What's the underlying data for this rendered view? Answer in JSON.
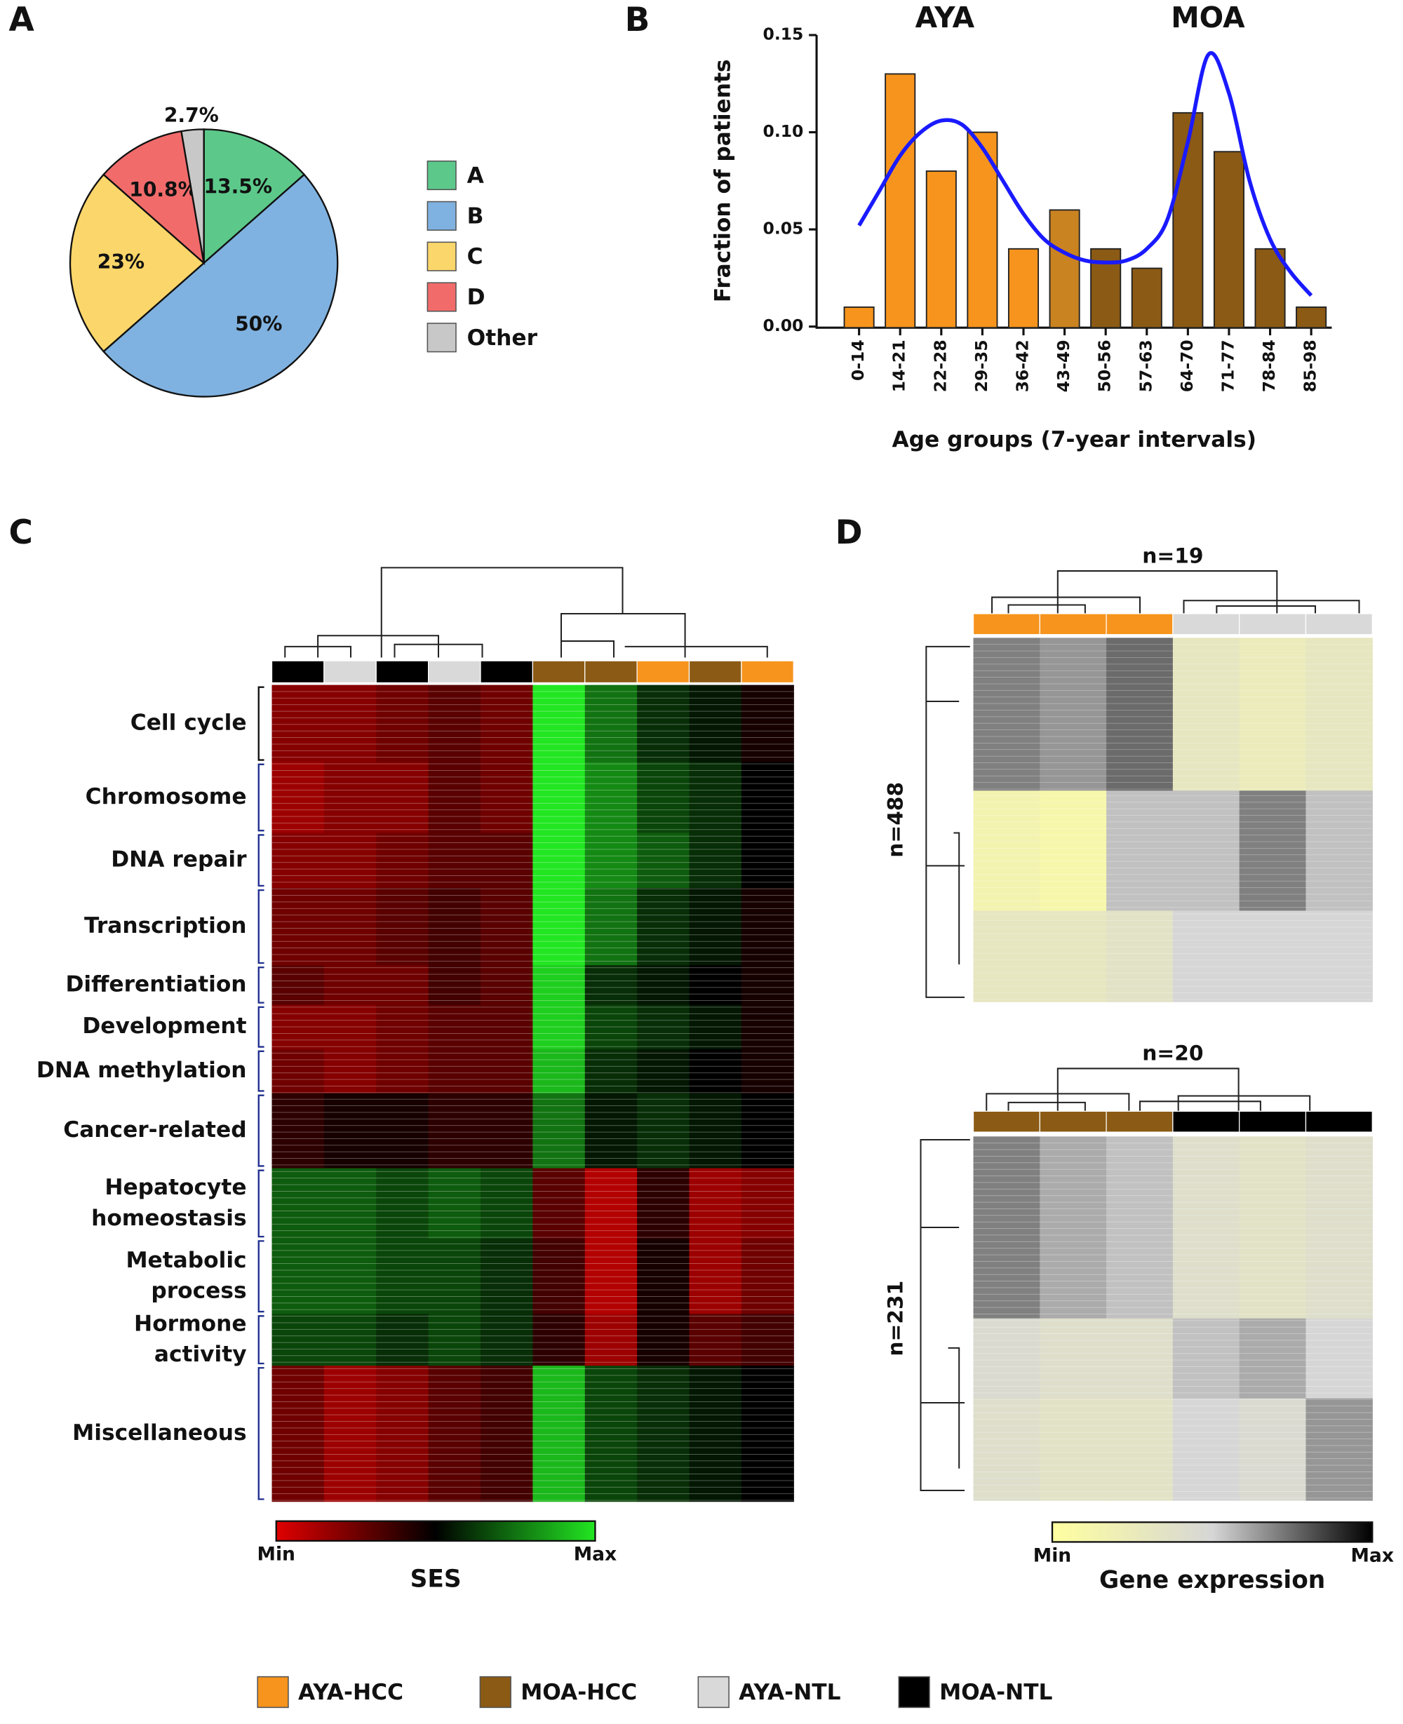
{
  "chart_data": [
    {
      "type": "pie",
      "panel_label": "A",
      "categories": [
        "A",
        "B",
        "C",
        "D",
        "Other"
      ],
      "values": [
        13.5,
        50,
        23,
        10.8,
        2.7
      ],
      "value_labels": [
        "13.5%",
        "50%",
        "23%",
        "10.8%",
        "2.7%"
      ],
      "colors": [
        "#5cc98a",
        "#7fb2e0",
        "#fbd66a",
        "#f26b6b",
        "#c8c8c8"
      ]
    },
    {
      "type": "bar",
      "panel_label": "B",
      "annotations": [
        "AYA",
        "MOA"
      ],
      "ylabel": "Fraction of patients",
      "xlabel": "Age groups (7-year intervals)",
      "categories": [
        "0-14",
        "14-21",
        "22-28",
        "29-35",
        "36-42",
        "43-49",
        "50-56",
        "57-63",
        "64-70",
        "71-77",
        "78-84",
        "85-98"
      ],
      "values": [
        0.01,
        0.13,
        0.08,
        0.1,
        0.04,
        0.06,
        0.04,
        0.03,
        0.11,
        0.09,
        0.04,
        0.01
      ],
      "colors": [
        "#f7941d",
        "#f7941d",
        "#f7941d",
        "#f7941d",
        "#f7941d",
        "#c98321",
        "#8b5a14",
        "#8b5a14",
        "#8b5a14",
        "#8b5a14",
        "#8b5a14",
        "#8b5a14"
      ],
      "ylim": [
        0,
        0.15
      ],
      "yticks": [
        {
          "value": 0,
          "label": "0.00"
        },
        0.05,
        {
          "value": 0.1,
          "label": "0.10"
        },
        0.15
      ],
      "curve": {
        "color": "#1a1aff",
        "x": [
          0,
          0.5,
          1,
          1.5,
          2,
          2.5,
          3,
          3.5,
          4,
          4.5,
          5,
          5.5,
          6,
          6.5,
          7,
          7.5,
          8,
          8.5,
          9,
          9.5,
          10,
          10.5,
          11
        ],
        "values": [
          0.052,
          0.07,
          0.088,
          0.1,
          0.106,
          0.104,
          0.092,
          0.075,
          0.058,
          0.045,
          0.038,
          0.034,
          0.033,
          0.034,
          0.04,
          0.055,
          0.095,
          0.14,
          0.12,
          0.075,
          0.045,
          0.028,
          0.016
        ]
      }
    },
    {
      "type": "heatmap",
      "panel_label": "C",
      "row_labels": [
        [
          "Cell cycle"
        ],
        [
          "Chromosome"
        ],
        [
          "DNA repair"
        ],
        [
          "Transcription"
        ],
        [
          "Differentiation"
        ],
        [
          "Development"
        ],
        [
          "DNA methylation"
        ],
        [
          "Cancer-related"
        ],
        [
          "Hepatocyte",
          "homeostasis"
        ],
        [
          "Metabolic",
          "process"
        ],
        [
          "Hormone",
          "activity"
        ],
        [
          "Miscellaneous"
        ]
      ],
      "column_types": [
        3,
        2,
        3,
        2,
        3,
        1,
        1,
        0,
        1,
        0
      ],
      "values": [
        [
          0.2,
          0.2,
          0.25,
          0.3,
          0.25,
          1,
          0.75,
          0.6,
          0.55,
          0.45
        ],
        [
          0.15,
          0.2,
          0.2,
          0.3,
          0.25,
          1,
          0.8,
          0.65,
          0.6,
          0.5
        ],
        [
          0.2,
          0.2,
          0.25,
          0.3,
          0.3,
          1,
          0.8,
          0.7,
          0.6,
          0.5
        ],
        [
          0.25,
          0.25,
          0.3,
          0.35,
          0.3,
          1,
          0.75,
          0.6,
          0.55,
          0.45
        ],
        [
          0.3,
          0.25,
          0.25,
          0.35,
          0.3,
          0.95,
          0.6,
          0.55,
          0.5,
          0.45
        ],
        [
          0.2,
          0.2,
          0.25,
          0.3,
          0.3,
          0.95,
          0.65,
          0.6,
          0.55,
          0.45
        ],
        [
          0.25,
          0.2,
          0.25,
          0.3,
          0.3,
          0.9,
          0.6,
          0.55,
          0.5,
          0.45
        ],
        [
          0.4,
          0.45,
          0.45,
          0.4,
          0.4,
          0.75,
          0.55,
          0.6,
          0.55,
          0.5
        ],
        [
          0.7,
          0.7,
          0.65,
          0.7,
          0.65,
          0.3,
          0.1,
          0.4,
          0.15,
          0.2
        ],
        [
          0.7,
          0.7,
          0.65,
          0.65,
          0.6,
          0.35,
          0.1,
          0.45,
          0.15,
          0.25
        ],
        [
          0.65,
          0.65,
          0.6,
          0.65,
          0.6,
          0.4,
          0.15,
          0.45,
          0.3,
          0.35
        ],
        [
          0.25,
          0.15,
          0.2,
          0.3,
          0.35,
          0.9,
          0.65,
          0.6,
          0.55,
          0.5
        ]
      ],
      "colorscale": [
        "#e00000",
        "#000000",
        "#22e622"
      ],
      "colorbar": {
        "min_label": "Min",
        "max_label": "Max",
        "title": "SES"
      }
    },
    {
      "type": "heatmap",
      "panel_label": "D",
      "title": "n=19",
      "row_title": "n=488",
      "column_types": [
        0,
        0,
        0,
        2,
        2,
        2
      ],
      "values": [
        [
          0.7,
          0.65,
          0.75,
          0.3,
          0.25,
          0.3
        ],
        [
          0.15,
          0.1,
          0.55,
          0.55,
          0.7,
          0.55
        ],
        [
          0.3,
          0.3,
          0.35,
          0.5,
          0.5,
          0.5
        ]
      ],
      "colorscale": [
        "#ffffa0",
        "#d6d6d6",
        "#000000"
      ]
    },
    {
      "type": "heatmap",
      "title": "n=20",
      "row_title": "n=231",
      "column_types": [
        1,
        1,
        1,
        3,
        3,
        3
      ],
      "values": [
        [
          0.7,
          0.6,
          0.55,
          0.4,
          0.35,
          0.4
        ],
        [
          0.45,
          0.4,
          0.4,
          0.55,
          0.6,
          0.5
        ],
        [
          0.4,
          0.35,
          0.35,
          0.5,
          0.45,
          0.65
        ]
      ],
      "colorscale": [
        "#ffffa0",
        "#d6d6d6",
        "#000000"
      ],
      "colorbar": {
        "min_label": "Min",
        "max_label": "Max",
        "title": "Gene expression"
      }
    }
  ],
  "legend": {
    "entries": [
      {
        "name": "AYA-HCC",
        "color": "#f7941d"
      },
      {
        "name": "MOA-HCC",
        "color": "#8b5a14"
      },
      {
        "name": "AYA-NTL",
        "color": "#d9d9d9"
      },
      {
        "name": "MOA-NTL",
        "color": "#000000"
      }
    ]
  }
}
